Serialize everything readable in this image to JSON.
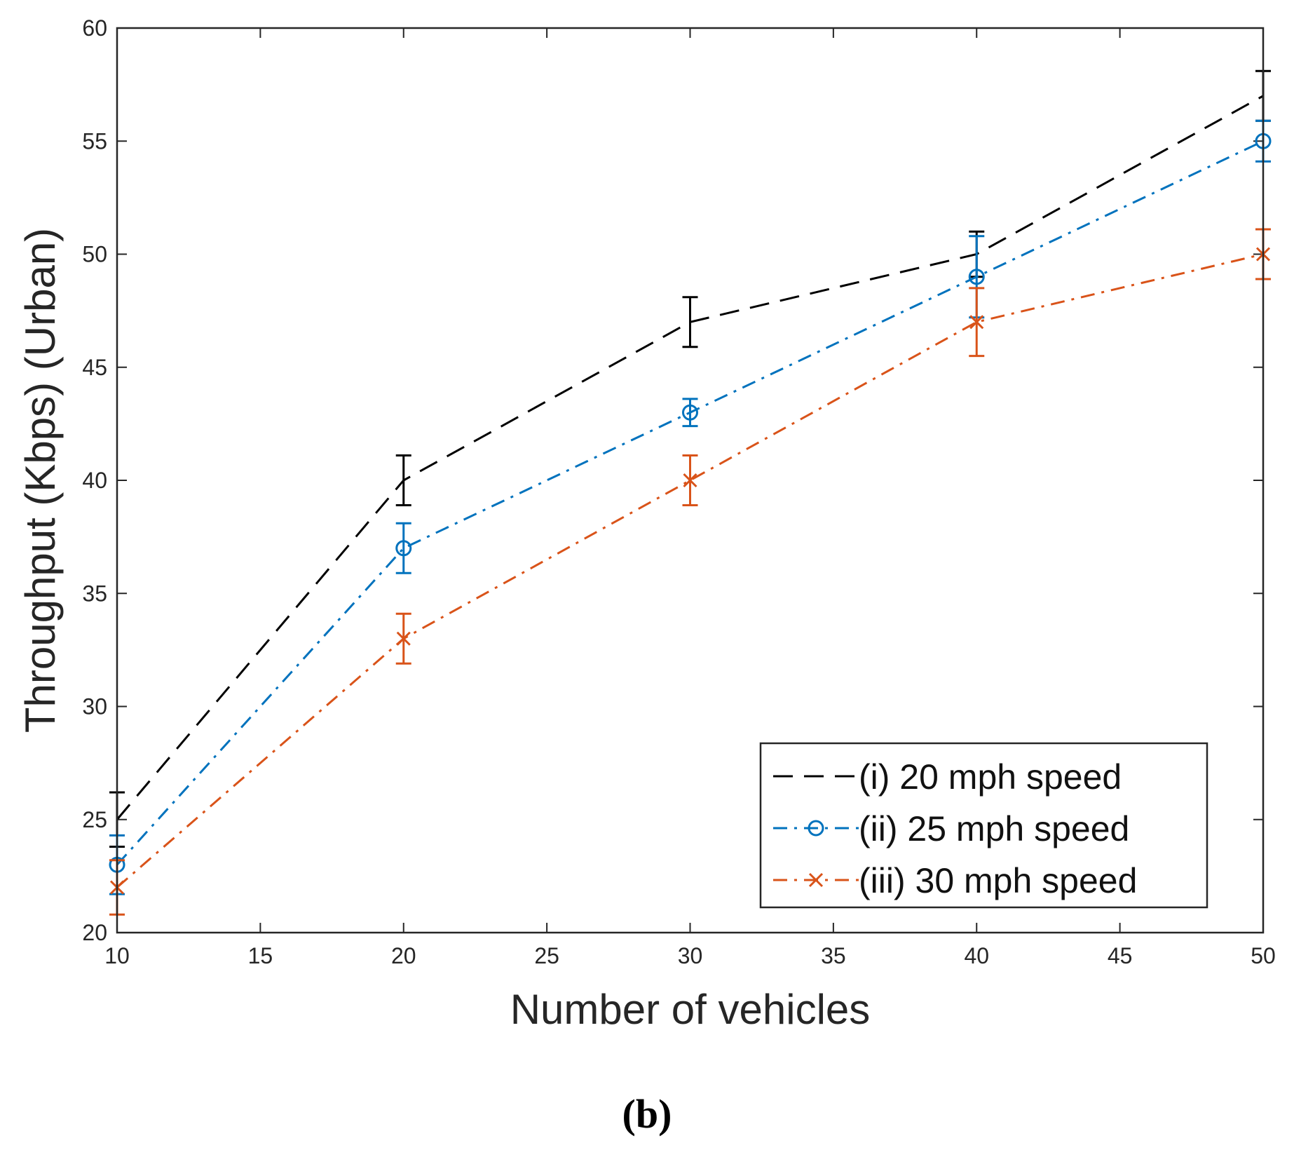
{
  "panel_label": "(b)",
  "chart_data": {
    "type": "line",
    "title": "",
    "xlabel": "Number of vehicles",
    "ylabel": "Throughput (Kbps) (Urban)",
    "xlim": [
      10,
      50
    ],
    "ylim": [
      20,
      60
    ],
    "xticks": [
      10,
      15,
      20,
      25,
      30,
      35,
      40,
      45,
      50
    ],
    "yticks": [
      20,
      25,
      30,
      35,
      40,
      45,
      50,
      55,
      60
    ],
    "x": [
      10,
      20,
      30,
      40,
      50
    ],
    "grid": false,
    "legend_position": "bottom-right",
    "series": [
      {
        "name": "(i) 20 mph speed",
        "color": "#000000",
        "line_style": "dashed",
        "marker": "none",
        "values": [
          25,
          40,
          47,
          50,
          57
        ],
        "error": [
          1.2,
          1.1,
          1.1,
          1.0,
          1.1
        ]
      },
      {
        "name": "(ii) 25 mph speed",
        "color": "#0072BD",
        "line_style": "dash-dot",
        "marker": "circle",
        "values": [
          23,
          37,
          43,
          49,
          55
        ],
        "error": [
          1.3,
          1.1,
          0.6,
          1.8,
          0.9
        ]
      },
      {
        "name": "(iii) 30 mph speed",
        "color": "#D95319",
        "line_style": "dash-dot",
        "marker": "x",
        "values": [
          22,
          33,
          40,
          47,
          50
        ],
        "error": [
          1.2,
          1.1,
          1.1,
          1.5,
          1.1
        ]
      }
    ]
  }
}
